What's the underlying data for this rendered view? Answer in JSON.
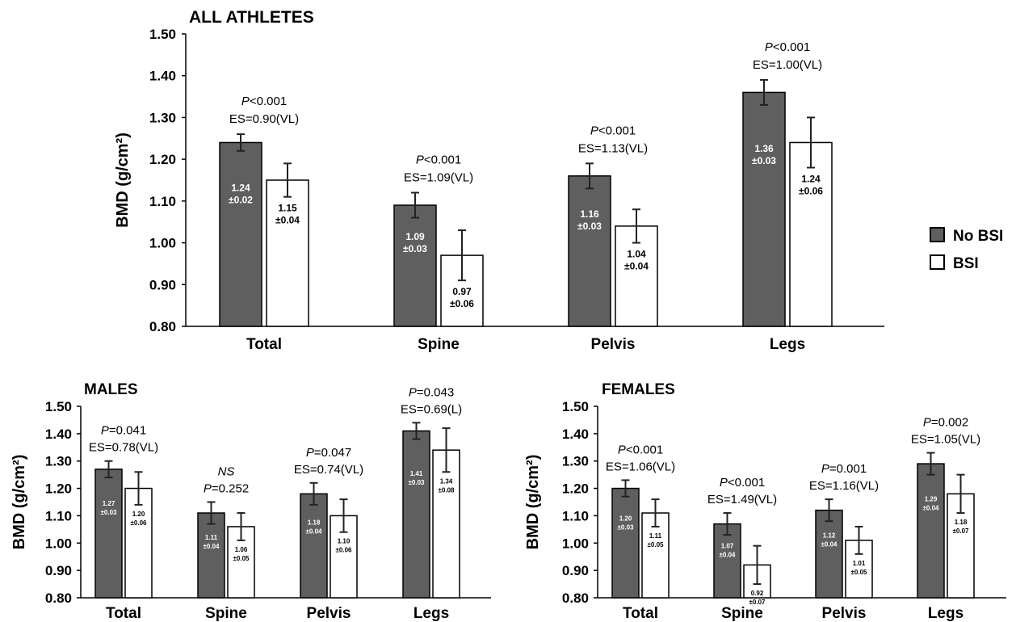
{
  "legend": {
    "position": "right",
    "items": [
      {
        "label": "No BSI",
        "color": "#5f5f5f"
      },
      {
        "label": "BSI",
        "color": "#ffffff"
      }
    ]
  },
  "chart_data": [
    {
      "type": "bar",
      "title": "ALL ATHLETES",
      "ylabel": "BMD (g/cm²)",
      "xlabel": "",
      "ylim": [
        0.8,
        1.5
      ],
      "yticks": [
        "0.80",
        "0.90",
        "1.00",
        "1.10",
        "1.20",
        "1.30",
        "1.40",
        "1.50"
      ],
      "categories": [
        "Total",
        "Spine",
        "Pelvis",
        "Legs"
      ],
      "series": [
        {
          "name": "No BSI",
          "values": [
            1.24,
            1.09,
            1.16,
            1.36
          ],
          "errors": [
            0.02,
            0.03,
            0.03,
            0.03
          ],
          "labels": [
            "1.24",
            "1.09",
            "1.16",
            "1.36"
          ],
          "error_labels": [
            "±0.02",
            "±0.03",
            "±0.03",
            "±0.03"
          ]
        },
        {
          "name": "BSI",
          "values": [
            1.15,
            0.97,
            1.04,
            1.24
          ],
          "errors": [
            0.04,
            0.06,
            0.04,
            0.06
          ],
          "labels": [
            "1.15",
            "0.97",
            "1.04",
            "1.24"
          ],
          "error_labels": [
            "±0.04",
            "±0.06",
            "±0.04",
            "±0.06"
          ]
        }
      ],
      "annotations": [
        {
          "p_label": "P<0.001",
          "es": "ES=0.90(VL)"
        },
        {
          "p_label": "P<0.001",
          "es": "ES=1.09(VL)"
        },
        {
          "p_label": "P<0.001",
          "es": "ES=1.13(VL)"
        },
        {
          "p_label": "P<0.001",
          "es": "ES=1.00(VL)"
        }
      ],
      "grid": false
    },
    {
      "type": "bar",
      "title": "MALES",
      "ylabel": "BMD (g/cm²)",
      "xlabel": "",
      "ylim": [
        0.8,
        1.5
      ],
      "yticks": [
        "0.80",
        "0.90",
        "1.00",
        "1.10",
        "1.20",
        "1.30",
        "1.40",
        "1.50"
      ],
      "categories": [
        "Total",
        "Spine",
        "Pelvis",
        "Legs"
      ],
      "series": [
        {
          "name": "No BSI",
          "values": [
            1.27,
            1.11,
            1.18,
            1.41
          ],
          "errors": [
            0.03,
            0.04,
            0.04,
            0.03
          ],
          "labels": [
            "1.27",
            "1.11",
            "1.18",
            "1.41"
          ],
          "error_labels": [
            "±0.03",
            "±0.04",
            "±0.04",
            "±0.03"
          ]
        },
        {
          "name": "BSI",
          "values": [
            1.2,
            1.06,
            1.1,
            1.34
          ],
          "errors": [
            0.06,
            0.05,
            0.06,
            0.08
          ],
          "labels": [
            "1.20",
            "1.06",
            "1.10",
            "1.34"
          ],
          "error_labels": [
            "±0.06",
            "±0.05",
            "±0.06",
            "±0.08"
          ]
        }
      ],
      "annotations": [
        {
          "p_label": "P=0.041",
          "es": "ES=0.78(VL)"
        },
        {
          "p_label": "NS",
          "es": "P=0.252"
        },
        {
          "p_label": "P=0.047",
          "es": "ES=0.74(VL)"
        },
        {
          "p_label": "P=0.043",
          "es": "ES=0.69(L)"
        }
      ],
      "grid": false
    },
    {
      "type": "bar",
      "title": "FEMALES",
      "ylabel": "BMD (g/cm²)",
      "xlabel": "",
      "ylim": [
        0.8,
        1.5
      ],
      "yticks": [
        "0.80",
        "0.90",
        "1.00",
        "1.10",
        "1.20",
        "1.30",
        "1.40",
        "1.50"
      ],
      "categories": [
        "Total",
        "Spine",
        "Pelvis",
        "Legs"
      ],
      "series": [
        {
          "name": "No BSI",
          "values": [
            1.2,
            1.07,
            1.12,
            1.29
          ],
          "errors": [
            0.03,
            0.04,
            0.04,
            0.04
          ],
          "labels": [
            "1.20",
            "1.07",
            "1.12",
            "1.29"
          ],
          "error_labels": [
            "±0.03",
            "±0.04",
            "±0.04",
            "±0.04"
          ]
        },
        {
          "name": "BSI",
          "values": [
            1.11,
            0.92,
            1.01,
            1.18
          ],
          "errors": [
            0.05,
            0.07,
            0.05,
            0.07
          ],
          "labels": [
            "1.11",
            "0.92",
            "1.01",
            "1.18"
          ],
          "error_labels": [
            "±0.05",
            "±0.07",
            "±0.05",
            "±0.07"
          ]
        }
      ],
      "annotations": [
        {
          "p_label": "P<0.001",
          "es": "ES=1.06(VL)"
        },
        {
          "p_label": "P<0.001",
          "es": "ES=1.49(VL)"
        },
        {
          "p_label": "P=0.001",
          "es": "ES=1.16(VL)"
        },
        {
          "p_label": "P=0.002",
          "es": "ES=1.05(VL)"
        }
      ],
      "grid": false
    }
  ]
}
